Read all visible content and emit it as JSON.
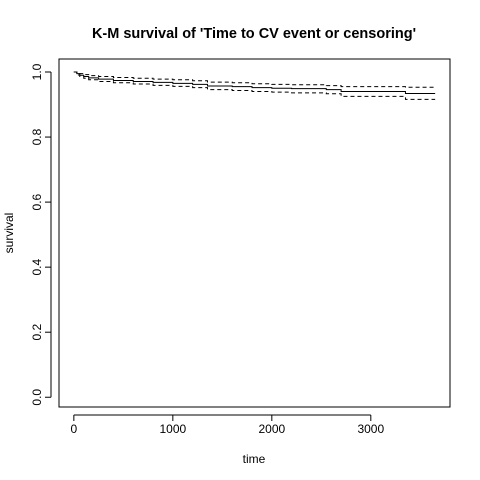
{
  "chart_data": {
    "type": "line",
    "title": "K-M survival of 'Time to CV event or censoring'",
    "xlabel": "time",
    "ylabel": "survival",
    "xlim": [
      -150,
      3800
    ],
    "ylim": [
      -0.03,
      1.04
    ],
    "x_ticks": [
      0,
      1000,
      2000,
      3000
    ],
    "y_ticks": [
      0.0,
      0.2,
      0.4,
      0.6,
      0.8,
      1.0
    ],
    "x_tick_labels": [
      "0",
      "1000",
      "2000",
      "3000"
    ],
    "y_tick_labels": [
      "0.0",
      "0.2",
      "0.4",
      "0.6",
      "0.8",
      "1.0"
    ],
    "grid": false,
    "series": [
      {
        "role": "estimate",
        "style": "solid",
        "x": [
          0,
          30,
          60,
          100,
          150,
          250,
          400,
          600,
          800,
          1000,
          1200,
          1350,
          1600,
          1800,
          2000,
          2200,
          2550,
          2700,
          3000,
          3350,
          3650
        ],
        "y": [
          1.0,
          0.995,
          0.99,
          0.986,
          0.982,
          0.978,
          0.974,
          0.971,
          0.968,
          0.965,
          0.962,
          0.957,
          0.955,
          0.952,
          0.95,
          0.949,
          0.946,
          0.94,
          0.94,
          0.934,
          0.934
        ]
      },
      {
        "role": "upper_ci",
        "style": "dashed",
        "x": [
          0,
          30,
          60,
          100,
          150,
          250,
          400,
          600,
          800,
          1000,
          1200,
          1350,
          1600,
          1800,
          2000,
          2200,
          2550,
          2700,
          3000,
          3350,
          3650
        ],
        "y": [
          1.0,
          0.998,
          0.995,
          0.992,
          0.989,
          0.986,
          0.983,
          0.981,
          0.978,
          0.976,
          0.973,
          0.969,
          0.967,
          0.964,
          0.962,
          0.961,
          0.958,
          0.955,
          0.955,
          0.953,
          0.953
        ]
      },
      {
        "role": "lower_ci",
        "style": "dashed",
        "x": [
          0,
          30,
          60,
          100,
          150,
          250,
          400,
          600,
          800,
          1000,
          1200,
          1350,
          1600,
          1800,
          2000,
          2200,
          2550,
          2700,
          3000,
          3350,
          3650
        ],
        "y": [
          1.0,
          0.991,
          0.986,
          0.981,
          0.976,
          0.971,
          0.967,
          0.963,
          0.959,
          0.956,
          0.952,
          0.946,
          0.943,
          0.94,
          0.938,
          0.936,
          0.933,
          0.925,
          0.925,
          0.916,
          0.916
        ]
      }
    ]
  }
}
